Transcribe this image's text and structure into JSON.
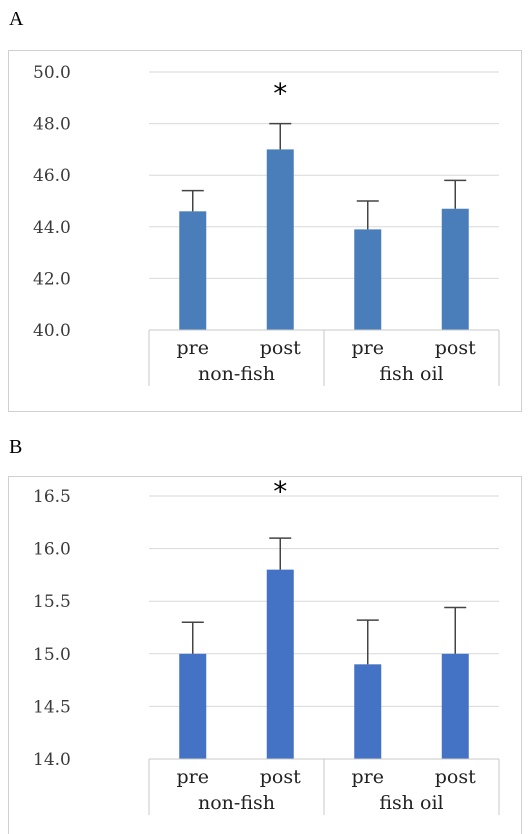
{
  "panels": [
    {
      "label": "A",
      "chart_data": {
        "type": "bar",
        "categories": [
          "pre",
          "post",
          "pre",
          "post"
        ],
        "groups": [
          "non-fish",
          "fish oil"
        ],
        "values": [
          44.6,
          47.0,
          43.9,
          44.7
        ],
        "errors": [
          0.8,
          1.0,
          1.1,
          1.1
        ],
        "ylim": [
          40.0,
          50.0
        ],
        "yticks": [
          "40.0",
          "42.0",
          "44.0",
          "46.0",
          "48.0",
          "50.0"
        ],
        "annotations": [
          {
            "category_index": 1,
            "text": "*"
          }
        ],
        "bar_color": "#4a7ebb",
        "grid": true
      }
    },
    {
      "label": "B",
      "chart_data": {
        "type": "bar",
        "categories": [
          "pre",
          "post",
          "pre",
          "post"
        ],
        "groups": [
          "non-fish",
          "fish oil"
        ],
        "values": [
          15.0,
          15.8,
          14.9,
          15.0
        ],
        "errors": [
          0.3,
          0.3,
          0.42,
          0.44
        ],
        "ylim": [
          14.0,
          16.5
        ],
        "yticks": [
          "14.0",
          "14.5",
          "15.0",
          "15.5",
          "16.0",
          "16.5"
        ],
        "annotations": [
          {
            "category_index": 1,
            "text": "*"
          }
        ],
        "bar_color": "#4472c4",
        "grid": true
      }
    }
  ]
}
